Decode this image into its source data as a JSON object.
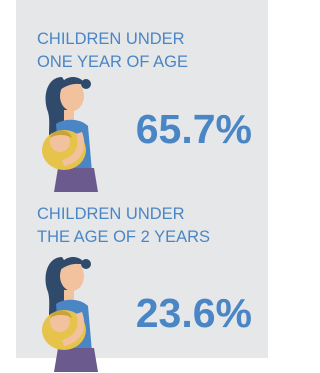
{
  "items": [
    {
      "label_lines": [
        "CHILDREN UNDER",
        "ONE YEAR OF AGE"
      ],
      "value": "65.7%"
    },
    {
      "label_lines": [
        "CHILDREN UNDER",
        "THE AGE OF 2 YEARS"
      ],
      "value": "23.6%"
    }
  ]
}
